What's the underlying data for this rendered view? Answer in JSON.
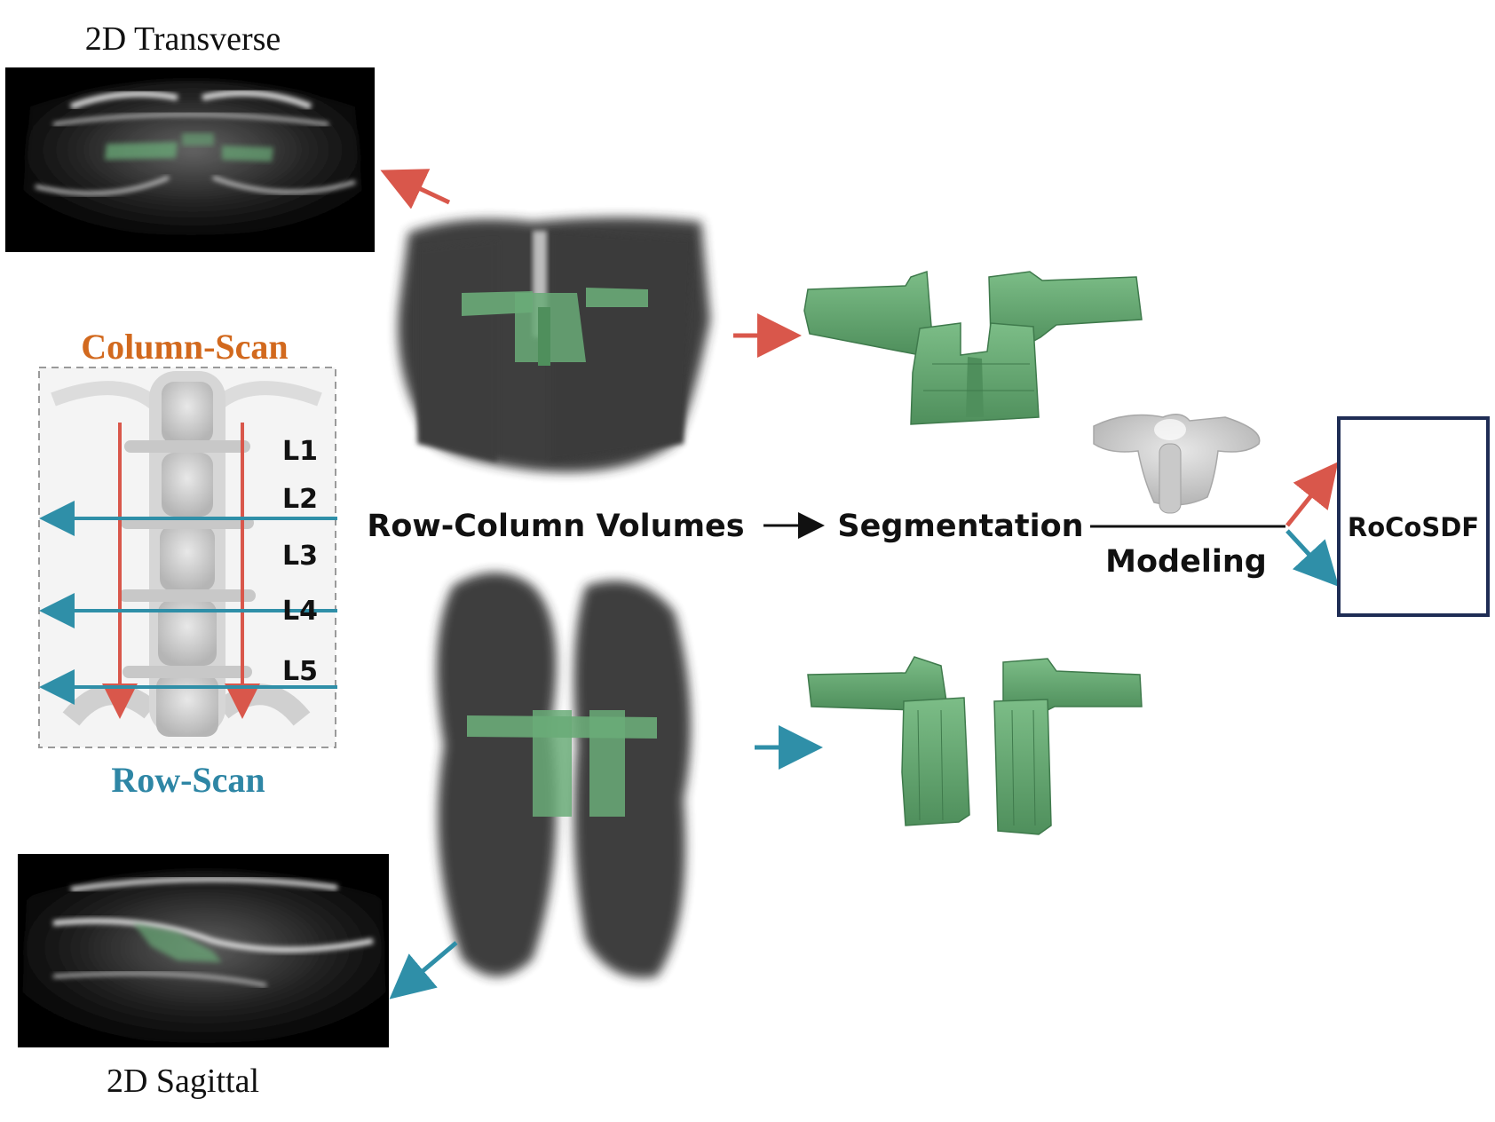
{
  "labels": {
    "transverse_title": "2D Transverse",
    "sagittal_title": "2D Sagittal",
    "column_scan": "Column-Scan",
    "row_scan": "Row-Scan",
    "levels": [
      "L1",
      "L2",
      "L3",
      "L4",
      "L5"
    ],
    "row_column_volumes": "Row-Column Volumes",
    "segmentation": "Segmentation",
    "modeling": "Modeling",
    "output_box": "RoCoSDF"
  },
  "colors": {
    "column_scan": "#d2691e",
    "row_scan": "#2e86a5",
    "red_arrow": "#d9574b",
    "blue_arrow": "#2f8fa8",
    "segment_green": "#6aab78",
    "output_border": "#1f2d55",
    "volume_dark": "#2b2b2b"
  },
  "icons": {
    "ultrasound_transverse": "ultrasound-transverse-image",
    "ultrasound_sagittal": "ultrasound-sagittal-image",
    "spine_xray": "lumbar-spine-image",
    "column_volume": "column-scan-volume-render",
    "row_volume": "row-scan-volume-render",
    "column_seg": "column-segmentation-mesh",
    "row_seg": "row-segmentation-mesh",
    "vertebra_model": "vertebra-mesh-model"
  }
}
